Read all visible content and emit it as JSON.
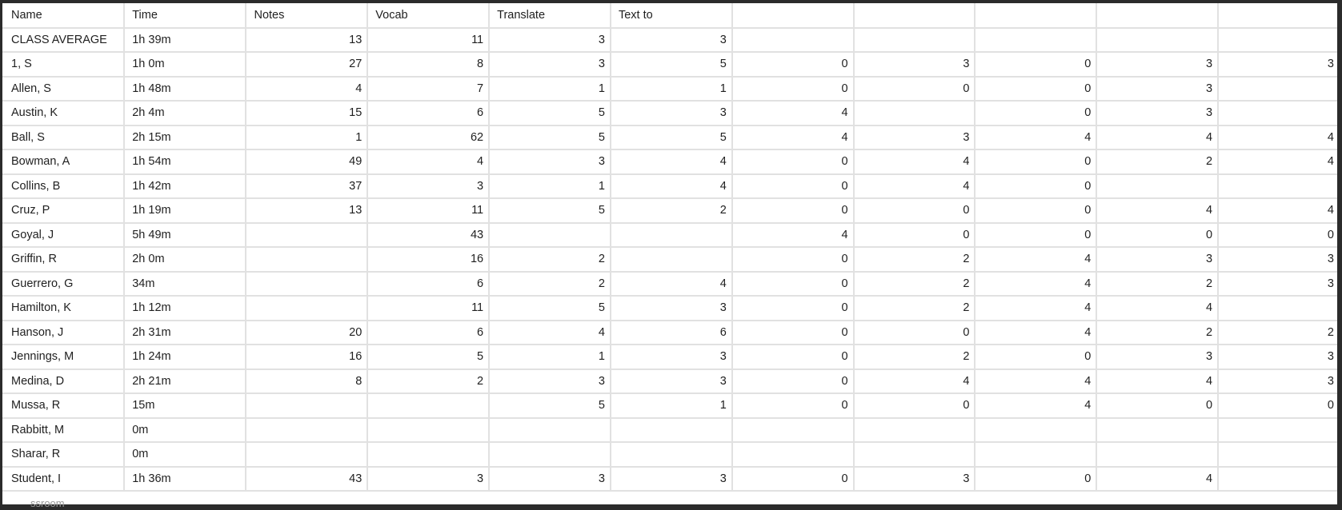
{
  "columns": [
    "Name",
    "Time",
    "Notes",
    "Vocab",
    "Translate",
    "Text to",
    "",
    "",
    "",
    "",
    ""
  ],
  "rows": [
    [
      "CLASS AVERAGE",
      "1h 39m",
      "13",
      "11",
      "3",
      "3",
      "",
      "",
      "",
      "",
      ""
    ],
    [
      "1, S",
      "1h 0m",
      "27",
      "8",
      "3",
      "5",
      "0",
      "3",
      "0",
      "3",
      "3"
    ],
    [
      "Allen, S",
      "1h 48m",
      "4",
      "7",
      "1",
      "1",
      "0",
      "0",
      "0",
      "3",
      ""
    ],
    [
      "Austin, K",
      "2h 4m",
      "15",
      "6",
      "5",
      "3",
      "4",
      "",
      "0",
      "3",
      ""
    ],
    [
      "Ball, S",
      "2h 15m",
      "1",
      "62",
      "5",
      "5",
      "4",
      "3",
      "4",
      "4",
      "4"
    ],
    [
      "Bowman, A",
      "1h 54m",
      "49",
      "4",
      "3",
      "4",
      "0",
      "4",
      "0",
      "2",
      "4"
    ],
    [
      "Collins, B",
      "1h 42m",
      "37",
      "3",
      "1",
      "4",
      "0",
      "4",
      "0",
      "",
      ""
    ],
    [
      "Cruz, P",
      "1h 19m",
      "13",
      "11",
      "5",
      "2",
      "0",
      "0",
      "0",
      "4",
      "4"
    ],
    [
      "Goyal, J",
      "5h 49m",
      "",
      "43",
      "",
      "",
      "4",
      "0",
      "0",
      "0",
      "0"
    ],
    [
      "Griffin, R",
      "2h 0m",
      "",
      "16",
      "2",
      "",
      "0",
      "2",
      "4",
      "3",
      "3"
    ],
    [
      "Guerrero, G",
      "34m",
      "",
      "6",
      "2",
      "4",
      "0",
      "2",
      "4",
      "2",
      "3"
    ],
    [
      "Hamilton, K",
      "1h 12m",
      "",
      "11",
      "5",
      "3",
      "0",
      "2",
      "4",
      "4",
      ""
    ],
    [
      "Hanson, J",
      "2h 31m",
      "20",
      "6",
      "4",
      "6",
      "0",
      "0",
      "4",
      "2",
      "2"
    ],
    [
      "Jennings, M",
      "1h 24m",
      "16",
      "5",
      "1",
      "3",
      "0",
      "2",
      "0",
      "3",
      "3"
    ],
    [
      "Medina, D",
      "2h 21m",
      "8",
      "2",
      "3",
      "3",
      "0",
      "4",
      "4",
      "4",
      "3"
    ],
    [
      "Mussa, R",
      "15m",
      "",
      "",
      "5",
      "1",
      "0",
      "0",
      "4",
      "0",
      "0"
    ],
    [
      "Rabbitt, M",
      "0m",
      "",
      "",
      "",
      "",
      "",
      "",
      "",
      "",
      ""
    ],
    [
      "Sharar, R",
      "0m",
      "",
      "",
      "",
      "",
      "",
      "",
      "",
      "",
      ""
    ],
    [
      "Student, I",
      "1h 36m",
      "43",
      "3",
      "3",
      "3",
      "0",
      "3",
      "0",
      "4",
      ""
    ]
  ],
  "overflow_text": "ssroom",
  "colors": {
    "frame": "#2b2b2b",
    "sheet_bg": "#ffffff",
    "gridline": "#e1e1e1",
    "text": "#1f1f1f"
  }
}
